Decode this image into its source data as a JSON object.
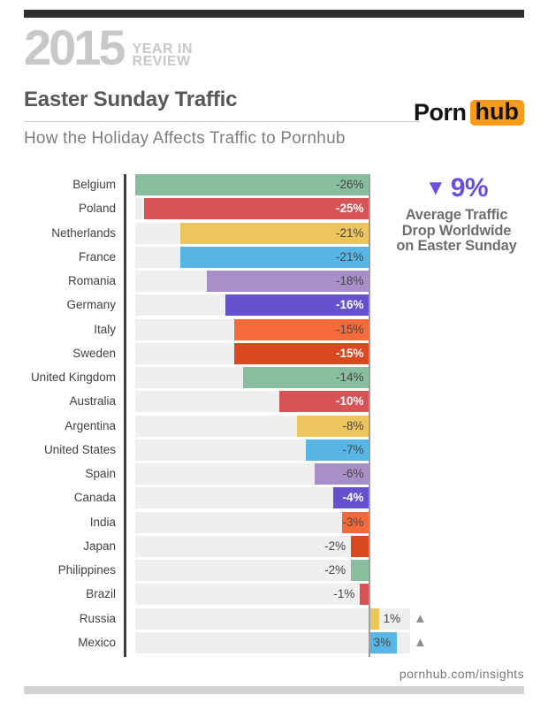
{
  "page": {
    "background": "#ffffff",
    "top_bar_color": "#2e2e2e",
    "footer_bar_color": "#d2d2d2"
  },
  "header": {
    "year": "2015",
    "year_in": "YEAR IN",
    "review": "REVIEW",
    "title": "Easter Sunday Traffic",
    "subtitle": "How the Holiday Affects Traffic to Pornhub"
  },
  "brand": {
    "porn": "Porn",
    "hub": "hub",
    "box_color": "#f89a1b"
  },
  "annotation": {
    "symbol": "▼",
    "value": "9%",
    "color": "#6a4fdc",
    "lines": [
      "Average Traffic",
      "Drop Worldwide",
      "on Easter Sunday"
    ]
  },
  "footer": {
    "link": "pornhub.com/insights"
  },
  "chart_data": {
    "type": "bar",
    "orientation": "horizontal",
    "title": "Easter Sunday Traffic",
    "subtitle": "How the Holiday Affects Traffic to Pornhub",
    "value_unit": "percent change in traffic on Easter Sunday",
    "xlim": [
      -26,
      3
    ],
    "zero_line": true,
    "grid": false,
    "legend": false,
    "categories": [
      "Belgium",
      "Poland",
      "Netherlands",
      "France",
      "Romania",
      "Germany",
      "Italy",
      "Sweden",
      "United Kingdom",
      "Australia",
      "Argentina",
      "United States",
      "Spain",
      "Canada",
      "India",
      "Japan",
      "Philippines",
      "Brazil",
      "Russia",
      "Mexico"
    ],
    "values": [
      -26,
      -25,
      -21,
      -21,
      -18,
      -16,
      -15,
      -15,
      -14,
      -10,
      -8,
      -7,
      -6,
      -4,
      -3,
      -2,
      -2,
      -1,
      1,
      3
    ],
    "value_labels": [
      "-26%",
      "-25%",
      "-21%",
      "-21%",
      "-18%",
      "-16%",
      "-15%",
      "-15%",
      "-14%",
      "-10%",
      "-8%",
      "-7%",
      "-6%",
      "-4%",
      "-3%",
      "-2%",
      "-2%",
      "-1%",
      "1%",
      "3%"
    ],
    "bar_colors": [
      "#88bd9e",
      "#d65356",
      "#ecc55f",
      "#58b6e6",
      "#a98fc7",
      "#6550cd",
      "#f46a3a",
      "#db4721",
      "#88bd9e",
      "#d65356",
      "#ecc55f",
      "#58b6e6",
      "#a98fc7",
      "#6550cd",
      "#f46a3a",
      "#db4721",
      "#88bd9e",
      "#d65356",
      "#ecc55f",
      "#58b6e6"
    ],
    "label_styles": [
      "dark",
      "white",
      "dark",
      "dark",
      "dark",
      "white",
      "dark",
      "white",
      "dark",
      "white",
      "dark",
      "dark",
      "dark",
      "white",
      "dark",
      "dark",
      "dark",
      "dark",
      "dark",
      "dark"
    ],
    "label_positions": [
      "inside",
      "inside",
      "inside",
      "inside",
      "inside",
      "inside",
      "inside",
      "inside",
      "inside",
      "inside",
      "inside",
      "inside",
      "inside",
      "inside",
      "inside",
      "outside",
      "outside",
      "outside",
      "outside",
      "inside"
    ],
    "positive_markers": [
      "",
      "",
      "",
      "",
      "",
      "",
      "",
      "",
      "",
      "",
      "",
      "",
      "",
      "",
      "",
      "",
      "",
      "",
      "▲",
      "▲"
    ],
    "positive_marker_color": "#8f9093",
    "track_color": "#efefef",
    "axis_color": "#3e3e40",
    "zero_line_color": "#9d9d9d"
  }
}
